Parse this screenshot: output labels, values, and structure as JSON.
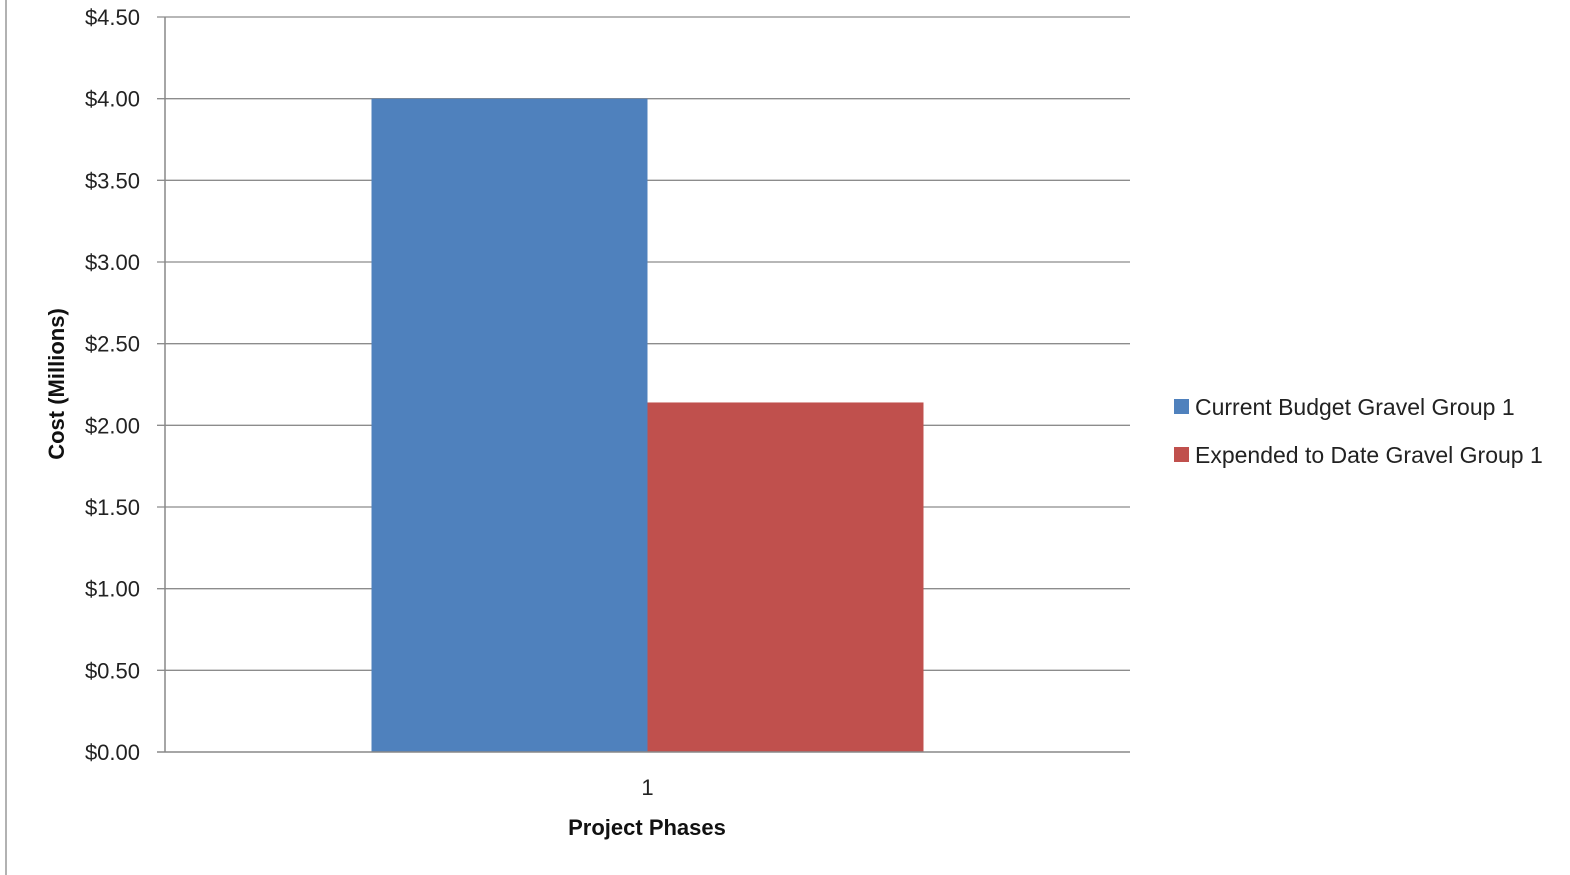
{
  "chart_data": {
    "type": "bar",
    "categories": [
      "1"
    ],
    "series": [
      {
        "name": "Current Budget Gravel Group 1",
        "color": "#4F81BD",
        "values": [
          4.0
        ]
      },
      {
        "name": "Expended to Date Gravel Group 1",
        "color": "#C0504D",
        "values": [
          2.14
        ]
      }
    ],
    "xlabel": "Project Phases",
    "ylabel": "Cost (Millions)",
    "ylim": [
      0,
      4.5
    ],
    "yticks": [
      0,
      0.5,
      1.0,
      1.5,
      2.0,
      2.5,
      3.0,
      3.5,
      4.0,
      4.5
    ],
    "ytick_labels": [
      "$0.00",
      "$0.50",
      "$1.00",
      "$1.50",
      "$2.00",
      "$2.50",
      "$3.00",
      "$3.50",
      "$4.00",
      "$4.50"
    ],
    "grid": true,
    "legend_position": "right"
  }
}
